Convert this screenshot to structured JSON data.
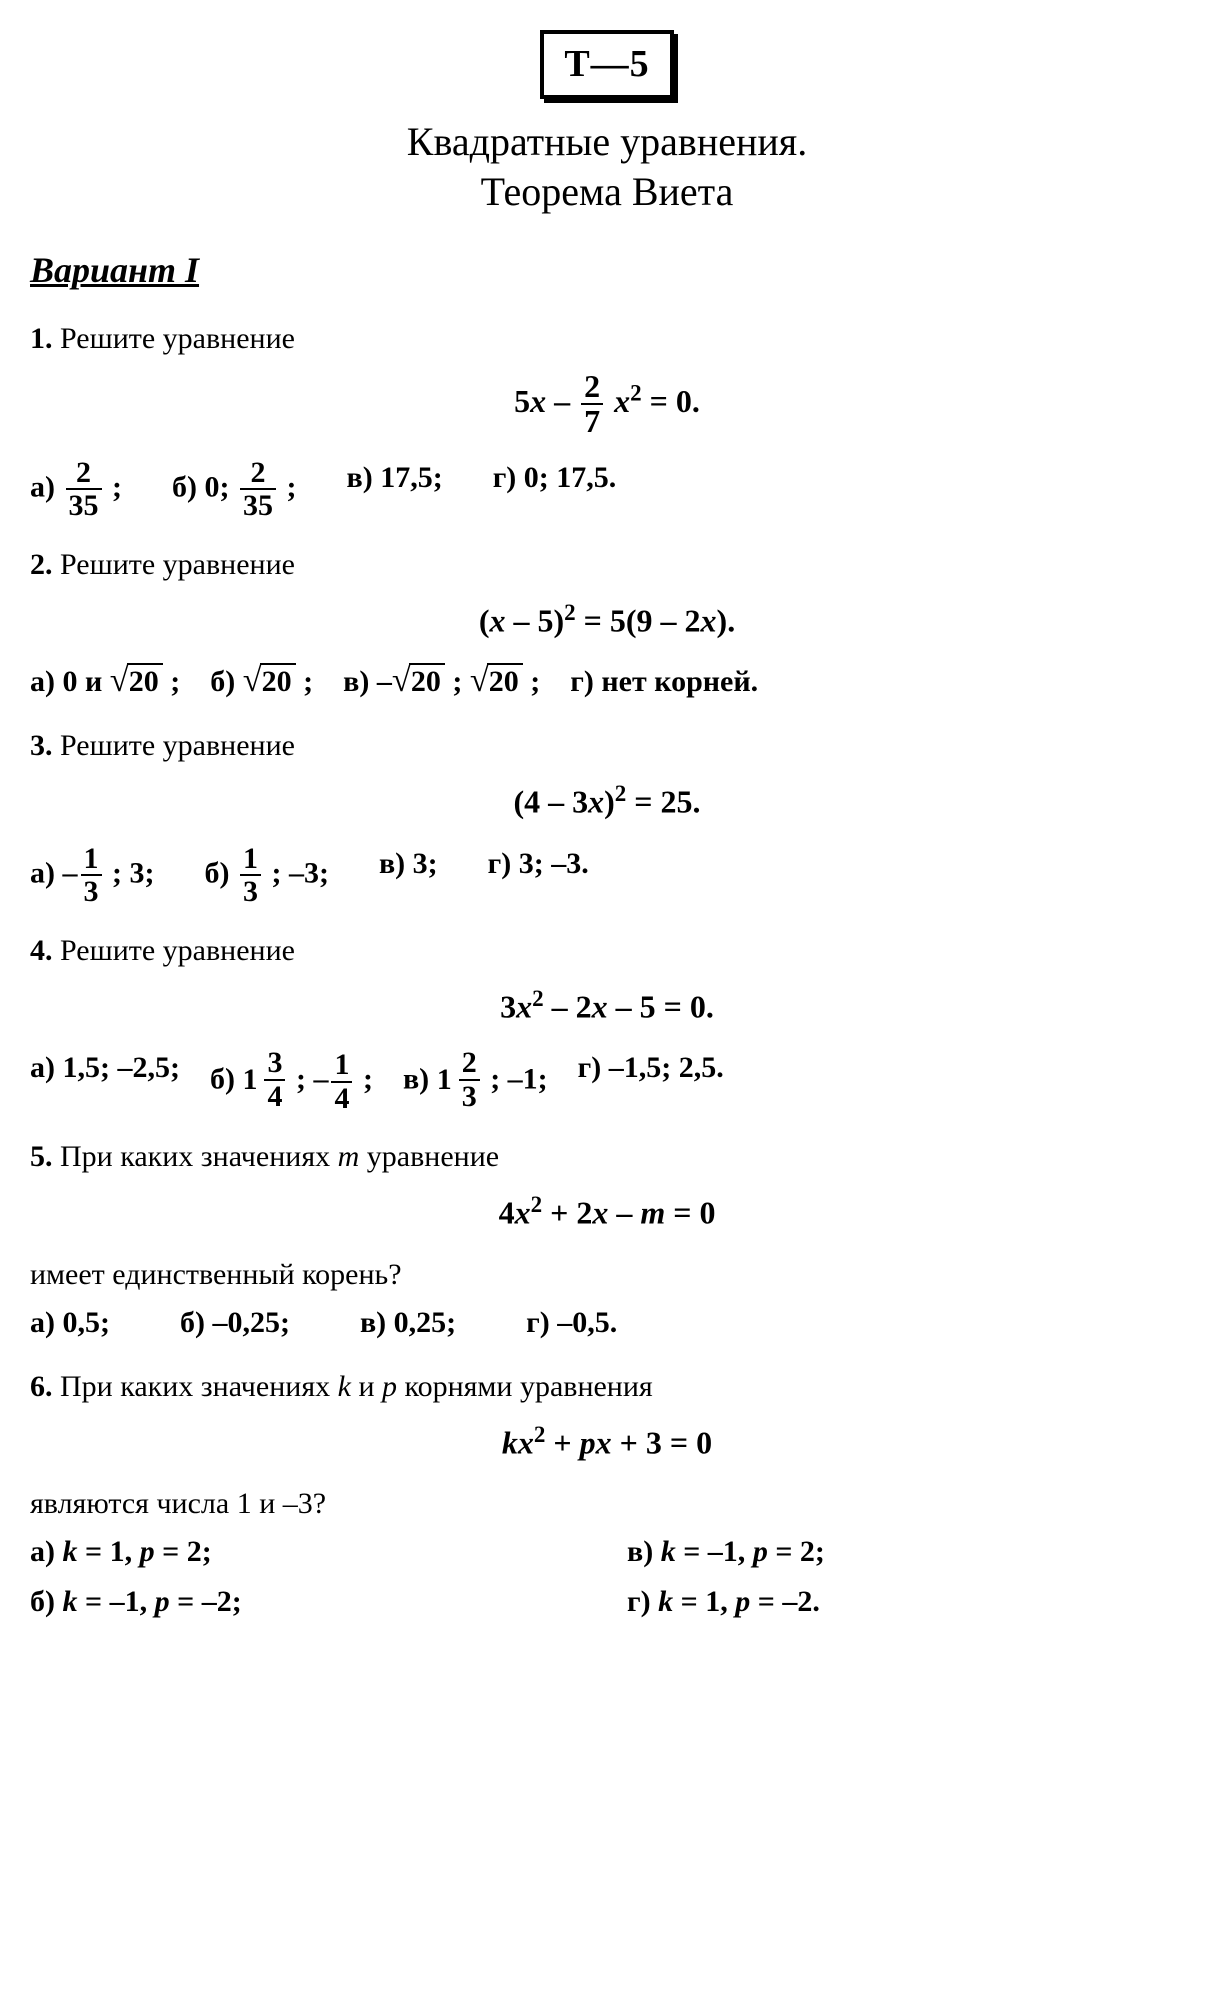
{
  "badge": "Т—5",
  "title_line1": "Квадратные уравнения.",
  "title_line2": "Теорема Виета",
  "variant": "Вариант I",
  "p1": {
    "num": "1.",
    "prompt": "Решите уравнение",
    "ans_a_label": "а)",
    "ans_a_frac_num": "2",
    "ans_a_frac_den": "35",
    "ans_a_tail": ";",
    "ans_b_label": "б)",
    "ans_b_lead": "0;",
    "ans_b_frac_num": "2",
    "ans_b_frac_den": "35",
    "ans_b_tail": ";",
    "ans_c": "в) 17,5;",
    "ans_d": "г) 0; 17,5."
  },
  "p2": {
    "num": "2.",
    "prompt": "Решите уравнение",
    "ans_a_label": "а)",
    "ans_a_lead": "0 и",
    "ans_a_rad": "20",
    "ans_a_tail": ";",
    "ans_b_label": "б)",
    "ans_b_rad": "20",
    "ans_b_tail": ";",
    "ans_c_label": "в)",
    "ans_c_neg": "–",
    "ans_c_rad1": "20",
    "ans_c_sep": ";",
    "ans_c_rad2": "20",
    "ans_c_tail": ";",
    "ans_d": "г) нет корней."
  },
  "p3": {
    "num": "3.",
    "prompt": "Решите уравнение",
    "ans_a_label": "а)",
    "ans_a_neg": "–",
    "ans_a_num": "1",
    "ans_a_den": "3",
    "ans_a_tail": "; 3;",
    "ans_b_label": "б)",
    "ans_b_num": "1",
    "ans_b_den": "3",
    "ans_b_tail": "; –3;",
    "ans_c": "в) 3;",
    "ans_d": "г) 3; –3."
  },
  "p4": {
    "num": "4.",
    "prompt": "Решите уравнение",
    "ans_a": "а) 1,5; –2,5;",
    "ans_b_label": "б)",
    "ans_b_whole1": "1",
    "ans_b_num1": "3",
    "ans_b_den1": "4",
    "ans_b_sep": "; –",
    "ans_b_num2": "1",
    "ans_b_den2": "4",
    "ans_b_tail": ";",
    "ans_c_label": "в)",
    "ans_c_whole": "1",
    "ans_c_num": "2",
    "ans_c_den": "3",
    "ans_c_tail": "; –1;",
    "ans_d": "г) –1,5; 2,5."
  },
  "p5": {
    "num": "5.",
    "prompt_pre": "При каких значениях ",
    "prompt_var": "m",
    "prompt_post": " уравнение",
    "prompt2": "имеет единственный корень?",
    "ans_a": "а) 0,5;",
    "ans_b": "б) –0,25;",
    "ans_c": "в) 0,25;",
    "ans_d": "г) –0,5."
  },
  "p6": {
    "num": "6.",
    "prompt_pre": "При каких значениях ",
    "prompt_k": "k",
    "prompt_and": " и ",
    "prompt_p": "p",
    "prompt_post": " корнями уравнения",
    "prompt2": "являются числа 1 и –3?",
    "a_label": "а) ",
    "a_k": "k",
    "a_keq": " = 1, ",
    "a_p": "p",
    "a_peq": " = 2;",
    "b_label": "б) ",
    "b_k": "k",
    "b_keq": " = –1, ",
    "b_p": "p",
    "b_peq": " = –2;",
    "c_label": "в) ",
    "c_k": "k",
    "c_keq": " = –1, ",
    "c_p": "p",
    "c_peq": " = 2;",
    "d_label": "г) ",
    "d_k": "k",
    "d_keq": " = 1, ",
    "d_p": "p",
    "d_peq": " = –2."
  }
}
